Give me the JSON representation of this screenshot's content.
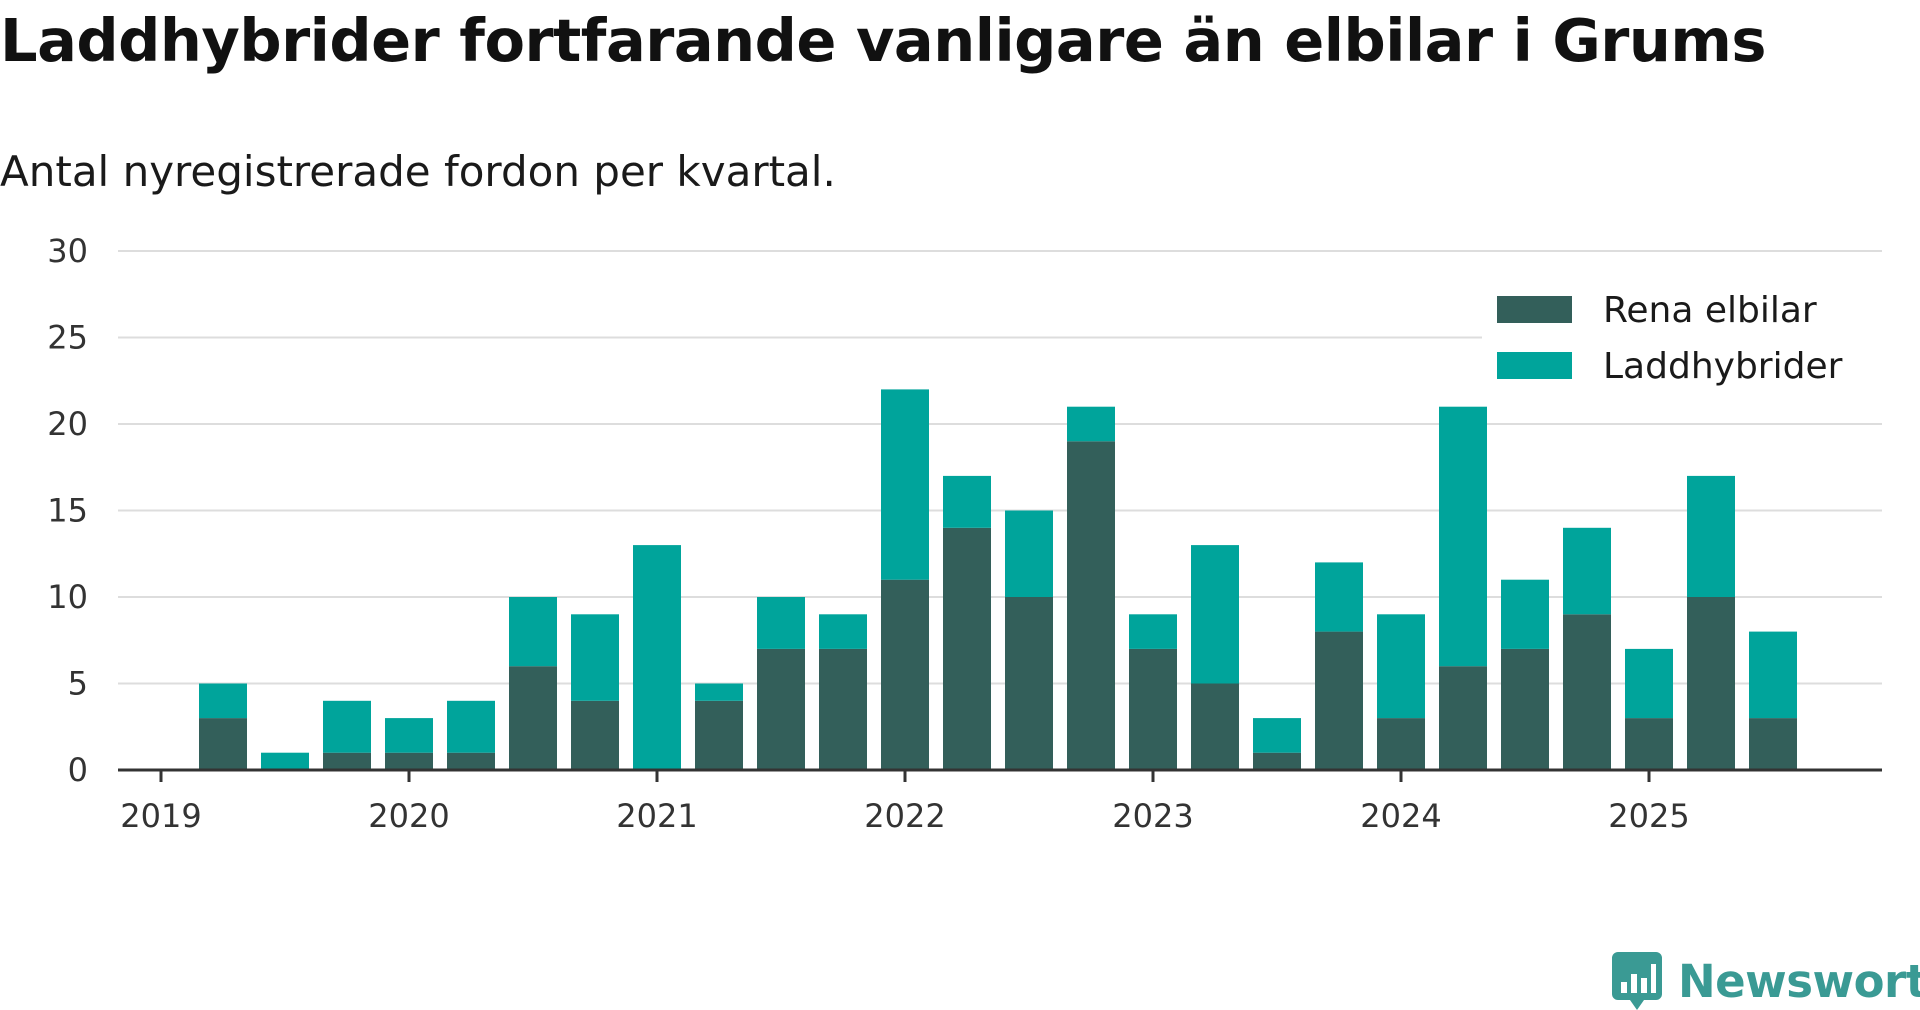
{
  "header": {
    "title": "Laddhybrider fortfarande vanligare än elbilar i Grums",
    "subtitle": "Antal nyregistrerade fordon per kvartal."
  },
  "brand": {
    "name": "Newsworthy"
  },
  "colors": {
    "rena_elbilar": "#335f5a",
    "laddhybrider": "#00a49b",
    "grid": "#dddddd",
    "axis": "#333333",
    "brand": "#3a9a94"
  },
  "chart_data": {
    "type": "bar",
    "stacked": true,
    "title": "Laddhybrider fortfarande vanligare än elbilar i Grums",
    "subtitle": "Antal nyregistrerade fordon per kvartal.",
    "categories": [
      "2019 Q1",
      "2019 Q2",
      "2019 Q3",
      "2019 Q4",
      "2020 Q1",
      "2020 Q2",
      "2020 Q3",
      "2020 Q4",
      "2021 Q1",
      "2021 Q2",
      "2021 Q3",
      "2021 Q4",
      "2022 Q1",
      "2022 Q2",
      "2022 Q3",
      "2022 Q4",
      "2023 Q1",
      "2023 Q2",
      "2023 Q3",
      "2023 Q4",
      "2024 Q1",
      "2024 Q2",
      "2024 Q3",
      "2024 Q4",
      "2025 Q1",
      "2025 Q2",
      "2025 Q3"
    ],
    "series": [
      {
        "name": "Rena elbilar",
        "values": [
          3,
          0,
          1,
          1,
          1,
          6,
          4,
          0,
          4,
          7,
          7,
          11,
          14,
          10,
          19,
          7,
          5,
          1,
          8,
          3,
          6,
          7,
          9,
          3,
          10,
          3,
          0
        ]
      },
      {
        "name": "Laddhybrider",
        "values": [
          2,
          1,
          3,
          2,
          3,
          4,
          5,
          13,
          1,
          3,
          2,
          11,
          3,
          5,
          2,
          2,
          8,
          2,
          4,
          6,
          15,
          4,
          5,
          4,
          7,
          5,
          0
        ]
      }
    ],
    "x_tick_labels": [
      "2019",
      "2020",
      "2021",
      "2022",
      "2023",
      "2024",
      "2025"
    ],
    "y_ticks": [
      0,
      5,
      10,
      15,
      20,
      25,
      30
    ],
    "ylim": [
      0,
      30
    ],
    "xlabel": "",
    "ylabel": "",
    "grid": true,
    "legend_position": "top-right"
  }
}
